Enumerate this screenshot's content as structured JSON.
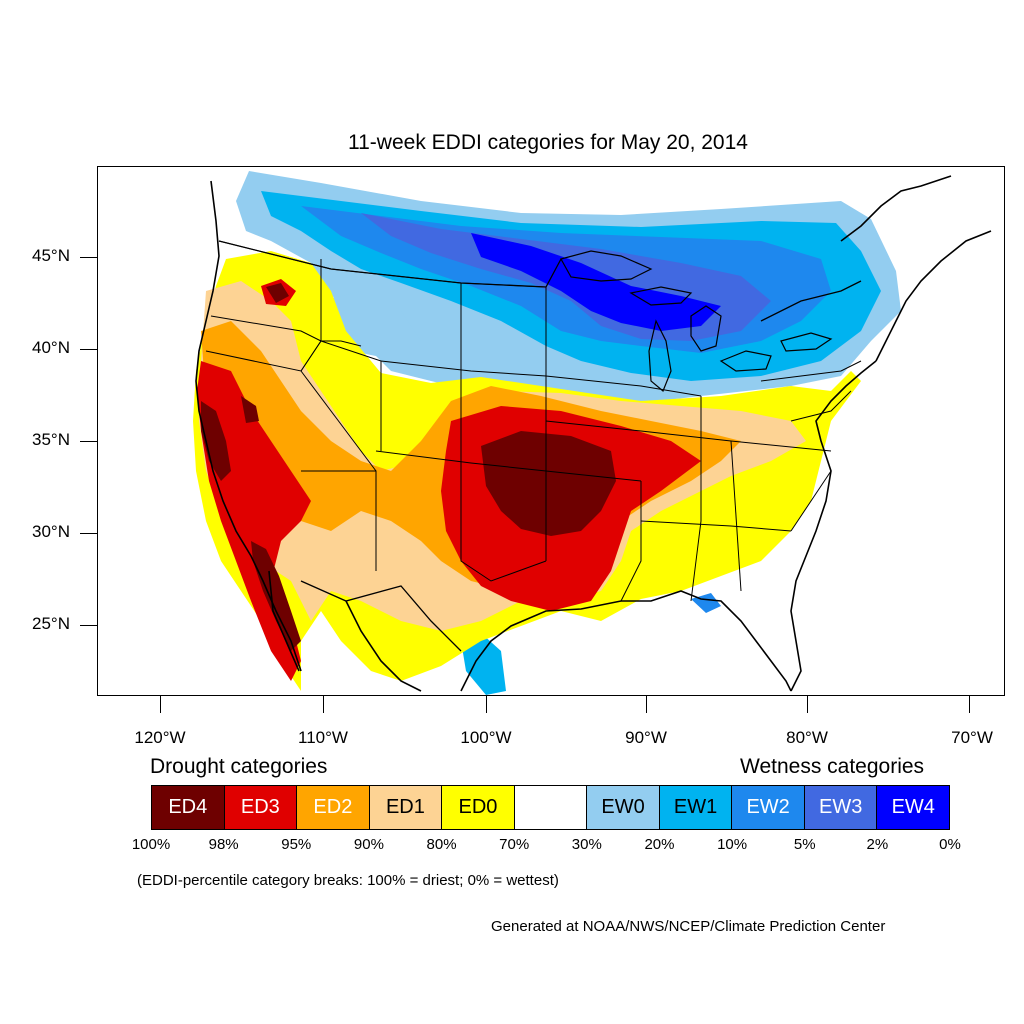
{
  "title": "11-week EDDI categories for May 20, 2014",
  "lat_labels": [
    "45°N",
    "40°N",
    "35°N",
    "30°N",
    "25°N"
  ],
  "lon_labels": [
    "120°W",
    "110°W",
    "100°W",
    "90°W",
    "80°W",
    "70°W"
  ],
  "legend": {
    "drought_heading": "Drought categories",
    "wetness_heading": "Wetness categories",
    "categories": [
      {
        "label": "ED4",
        "color": "#6e0000",
        "text_color": "#ffffff"
      },
      {
        "label": "ED3",
        "color": "#e00000",
        "text_color": "#ffffff"
      },
      {
        "label": "ED2",
        "color": "#ffa500",
        "text_color": "#ffffff"
      },
      {
        "label": "ED1",
        "color": "#fdd394",
        "text_color": "#000000"
      },
      {
        "label": "ED0",
        "color": "#ffff00",
        "text_color": "#000000"
      },
      {
        "label": "",
        "color": "#ffffff",
        "text_color": "#000000"
      },
      {
        "label": "EW0",
        "color": "#93cdf0",
        "text_color": "#000000"
      },
      {
        "label": "EW1",
        "color": "#00b3f0",
        "text_color": "#000000"
      },
      {
        "label": "EW2",
        "color": "#1e88ee",
        "text_color": "#ffffff"
      },
      {
        "label": "EW3",
        "color": "#4169e1",
        "text_color": "#ffffff"
      },
      {
        "label": "EW4",
        "color": "#0000ff",
        "text_color": "#ffffff"
      }
    ],
    "percentiles": [
      "100%",
      "98%",
      "95%",
      "90%",
      "80%",
      "70%",
      "30%",
      "20%",
      "10%",
      "5%",
      "2%",
      "0%"
    ]
  },
  "note": "(EDDI-percentile category breaks: 100% = driest; 0% = wettest)",
  "credit": "Generated at NOAA/NWS/NCEP/Climate Prediction Center"
}
